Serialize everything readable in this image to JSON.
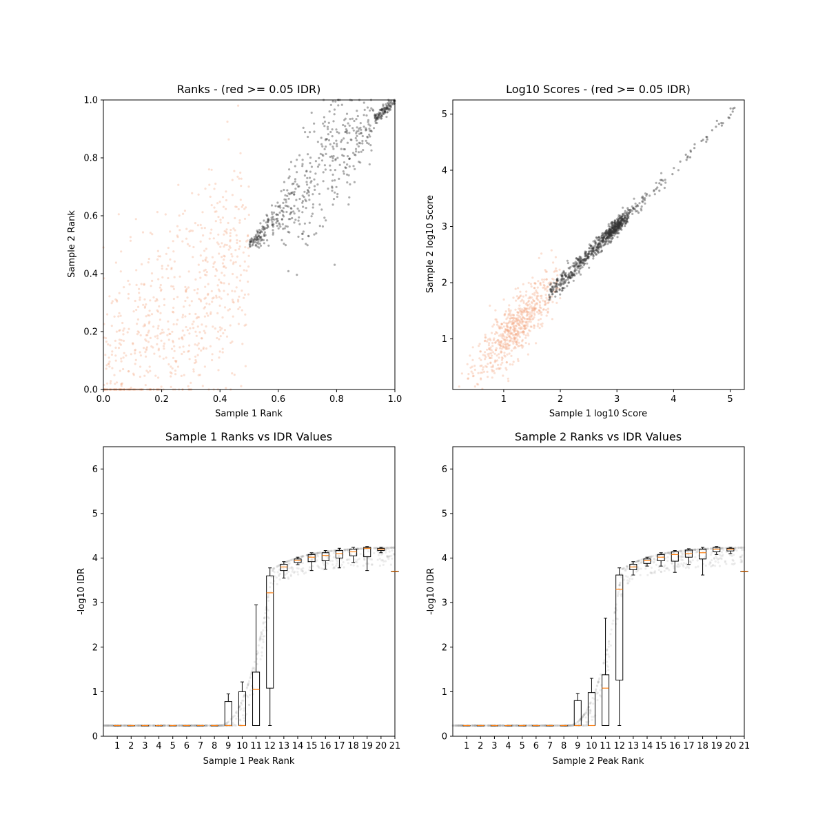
{
  "chart_data": [
    {
      "type": "scatter",
      "title": "Ranks - (red >= 0.05 IDR)",
      "xlabel": "Sample 1 Rank",
      "ylabel": "Sample 2 Rank",
      "xlim": [
        0,
        1
      ],
      "ylim": [
        0,
        1
      ],
      "xticks": [
        0.0,
        0.2,
        0.4,
        0.6,
        0.8,
        1.0
      ],
      "yticks": [
        0.0,
        0.2,
        0.4,
        0.6,
        0.8,
        1.0
      ],
      "xtick_labels": [
        "0.0",
        "0.2",
        "0.4",
        "0.6",
        "0.8",
        "1.0"
      ],
      "ytick_labels": [
        "0.0",
        "0.2",
        "0.4",
        "0.6",
        "0.8",
        "1.0"
      ],
      "colors": {
        "pass": "#333333",
        "fail": "#f4a582"
      },
      "point_groups": [
        {
          "group": "fail",
          "x_range": [
            0.0,
            0.5
          ],
          "y_pattern": "rank_noise_wide",
          "count": 700
        },
        {
          "group": "pass",
          "x_range": [
            0.5,
            1.0
          ],
          "y_pattern": "rank_noise_narrow",
          "count": 600
        }
      ]
    },
    {
      "type": "scatter",
      "title": "Log10 Scores - (red >= 0.05 IDR)",
      "xlabel": "Sample 1 log10 Score",
      "ylabel": "Sample 2 log10 Score",
      "xlim": [
        0.1,
        5.25
      ],
      "ylim": [
        0.1,
        5.25
      ],
      "xticks": [
        1,
        2,
        3,
        4,
        5
      ],
      "yticks": [
        1,
        2,
        3,
        4,
        5
      ],
      "xtick_labels": [
        "1",
        "2",
        "3",
        "4",
        "5"
      ],
      "ytick_labels": [
        "1",
        "2",
        "3",
        "4",
        "5"
      ],
      "colors": {
        "pass": "#333333",
        "fail": "#f4a582"
      },
      "point_groups": [
        {
          "group": "fail",
          "center": [
            1.2,
            1.1
          ],
          "spread": 0.35,
          "count": 650
        },
        {
          "group": "pass",
          "center": [
            2.6,
            2.6
          ],
          "spread": 0.5,
          "count": 550
        }
      ]
    },
    {
      "type": "box",
      "title": "Sample 1 Ranks vs IDR Values",
      "xlabel": "Sample 1 Peak Rank",
      "ylabel": "-log10 IDR",
      "xlim": [
        0,
        21
      ],
      "ylim": [
        0,
        6.5
      ],
      "categories": [
        "1",
        "2",
        "3",
        "4",
        "5",
        "6",
        "7",
        "8",
        "9",
        "10",
        "11",
        "12",
        "13",
        "14",
        "15",
        "16",
        "17",
        "18",
        "19",
        "20",
        "21"
      ],
      "yticks": [
        0,
        1,
        2,
        3,
        4,
        5,
        6
      ],
      "ytick_labels": [
        "0",
        "1",
        "2",
        "3",
        "4",
        "5",
        "6"
      ],
      "boxes": [
        {
          "pos": 1,
          "whislo": 0.24,
          "q1": 0.24,
          "med": 0.24,
          "q3": 0.24,
          "whishi": 0.24
        },
        {
          "pos": 2,
          "whislo": 0.24,
          "q1": 0.24,
          "med": 0.24,
          "q3": 0.24,
          "whishi": 0.24
        },
        {
          "pos": 3,
          "whislo": 0.24,
          "q1": 0.24,
          "med": 0.24,
          "q3": 0.24,
          "whishi": 0.24
        },
        {
          "pos": 4,
          "whislo": 0.24,
          "q1": 0.24,
          "med": 0.24,
          "q3": 0.24,
          "whishi": 0.24
        },
        {
          "pos": 5,
          "whislo": 0.24,
          "q1": 0.24,
          "med": 0.24,
          "q3": 0.24,
          "whishi": 0.24
        },
        {
          "pos": 6,
          "whislo": 0.24,
          "q1": 0.24,
          "med": 0.24,
          "q3": 0.24,
          "whishi": 0.24
        },
        {
          "pos": 7,
          "whislo": 0.24,
          "q1": 0.24,
          "med": 0.24,
          "q3": 0.24,
          "whishi": 0.24
        },
        {
          "pos": 8,
          "whislo": 0.24,
          "q1": 0.24,
          "med": 0.24,
          "q3": 0.24,
          "whishi": 0.24
        },
        {
          "pos": 9,
          "whislo": 0.24,
          "q1": 0.24,
          "med": 0.24,
          "q3": 0.78,
          "whishi": 0.95
        },
        {
          "pos": 10,
          "whislo": 0.24,
          "q1": 0.24,
          "med": 0.24,
          "q3": 1.0,
          "whishi": 1.22
        },
        {
          "pos": 11,
          "whislo": 0.24,
          "q1": 0.24,
          "med": 1.05,
          "q3": 1.44,
          "whishi": 2.95
        },
        {
          "pos": 12,
          "whislo": 0.24,
          "q1": 1.08,
          "med": 3.22,
          "q3": 3.6,
          "whishi": 3.78
        },
        {
          "pos": 13,
          "whislo": 3.55,
          "q1": 3.72,
          "med": 3.8,
          "q3": 3.86,
          "whishi": 3.92
        },
        {
          "pos": 14,
          "whislo": 3.85,
          "q1": 3.9,
          "med": 3.95,
          "q3": 3.98,
          "whishi": 4.02
        },
        {
          "pos": 15,
          "whislo": 3.72,
          "q1": 3.92,
          "med": 4.02,
          "q3": 4.08,
          "whishi": 4.12
        },
        {
          "pos": 16,
          "whislo": 3.75,
          "q1": 3.94,
          "med": 4.06,
          "q3": 4.12,
          "whishi": 4.17
        },
        {
          "pos": 17,
          "whislo": 3.78,
          "q1": 4.0,
          "med": 4.1,
          "q3": 4.17,
          "whishi": 4.22
        },
        {
          "pos": 18,
          "whislo": 3.9,
          "q1": 4.05,
          "med": 4.14,
          "q3": 4.2,
          "whishi": 4.24
        },
        {
          "pos": 19,
          "whislo": 3.72,
          "q1": 4.03,
          "med": 4.22,
          "q3": 4.24,
          "whishi": 4.26
        },
        {
          "pos": 20,
          "whislo": 4.12,
          "q1": 4.17,
          "med": 4.2,
          "q3": 4.22,
          "whishi": 4.24
        },
        {
          "pos": 21,
          "whislo": 3.7,
          "q1": 3.7,
          "med": 3.7,
          "q3": 3.7,
          "whishi": 3.7
        }
      ],
      "colors": {
        "box": "#000000",
        "median": "#ff7f0e",
        "points": "#9a9a9a"
      }
    },
    {
      "type": "box",
      "title": "Sample 2 Ranks vs IDR Values",
      "xlabel": "Sample 2 Peak Rank",
      "ylabel": "-log10 IDR",
      "xlim": [
        0,
        21
      ],
      "ylim": [
        0,
        6.5
      ],
      "categories": [
        "1",
        "2",
        "3",
        "4",
        "5",
        "6",
        "7",
        "8",
        "9",
        "10",
        "11",
        "12",
        "13",
        "14",
        "15",
        "16",
        "17",
        "18",
        "19",
        "20",
        "21"
      ],
      "yticks": [
        0,
        1,
        2,
        3,
        4,
        5,
        6
      ],
      "ytick_labels": [
        "0",
        "1",
        "2",
        "3",
        "4",
        "5",
        "6"
      ],
      "boxes": [
        {
          "pos": 1,
          "whislo": 0.24,
          "q1": 0.24,
          "med": 0.24,
          "q3": 0.24,
          "whishi": 0.24
        },
        {
          "pos": 2,
          "whislo": 0.24,
          "q1": 0.24,
          "med": 0.24,
          "q3": 0.24,
          "whishi": 0.24
        },
        {
          "pos": 3,
          "whislo": 0.24,
          "q1": 0.24,
          "med": 0.24,
          "q3": 0.24,
          "whishi": 0.24
        },
        {
          "pos": 4,
          "whislo": 0.24,
          "q1": 0.24,
          "med": 0.24,
          "q3": 0.24,
          "whishi": 0.24
        },
        {
          "pos": 5,
          "whislo": 0.24,
          "q1": 0.24,
          "med": 0.24,
          "q3": 0.24,
          "whishi": 0.24
        },
        {
          "pos": 6,
          "whislo": 0.24,
          "q1": 0.24,
          "med": 0.24,
          "q3": 0.24,
          "whishi": 0.24
        },
        {
          "pos": 7,
          "whislo": 0.24,
          "q1": 0.24,
          "med": 0.24,
          "q3": 0.24,
          "whishi": 0.24
        },
        {
          "pos": 8,
          "whislo": 0.24,
          "q1": 0.24,
          "med": 0.24,
          "q3": 0.24,
          "whishi": 0.24
        },
        {
          "pos": 9,
          "whislo": 0.24,
          "q1": 0.24,
          "med": 0.24,
          "q3": 0.8,
          "whishi": 0.96
        },
        {
          "pos": 10,
          "whislo": 0.24,
          "q1": 0.24,
          "med": 0.24,
          "q3": 0.98,
          "whishi": 1.3
        },
        {
          "pos": 11,
          "whislo": 0.24,
          "q1": 0.24,
          "med": 1.08,
          "q3": 1.38,
          "whishi": 2.65
        },
        {
          "pos": 12,
          "whislo": 0.24,
          "q1": 1.26,
          "med": 3.3,
          "q3": 3.62,
          "whishi": 3.78
        },
        {
          "pos": 13,
          "whislo": 3.62,
          "q1": 3.74,
          "med": 3.8,
          "q3": 3.86,
          "whishi": 3.92
        },
        {
          "pos": 14,
          "whislo": 3.82,
          "q1": 3.88,
          "med": 3.94,
          "q3": 3.98,
          "whishi": 4.02
        },
        {
          "pos": 15,
          "whislo": 3.82,
          "q1": 3.94,
          "med": 4.02,
          "q3": 4.08,
          "whishi": 4.12
        },
        {
          "pos": 16,
          "whislo": 3.68,
          "q1": 3.93,
          "med": 4.08,
          "q3": 4.14,
          "whishi": 4.17
        },
        {
          "pos": 17,
          "whislo": 3.86,
          "q1": 4.02,
          "med": 4.1,
          "q3": 4.18,
          "whishi": 4.21
        },
        {
          "pos": 18,
          "whislo": 3.62,
          "q1": 3.98,
          "med": 4.12,
          "q3": 4.2,
          "whishi": 4.24
        },
        {
          "pos": 19,
          "whislo": 4.08,
          "q1": 4.14,
          "med": 4.2,
          "q3": 4.24,
          "whishi": 4.26
        },
        {
          "pos": 20,
          "whislo": 4.1,
          "q1": 4.16,
          "med": 4.2,
          "q3": 4.22,
          "whishi": 4.24
        },
        {
          "pos": 21,
          "whislo": 3.7,
          "q1": 3.7,
          "med": 3.7,
          "q3": 3.7,
          "whishi": 3.7
        }
      ],
      "colors": {
        "box": "#000000",
        "median": "#ff7f0e",
        "points": "#9a9a9a"
      }
    }
  ]
}
